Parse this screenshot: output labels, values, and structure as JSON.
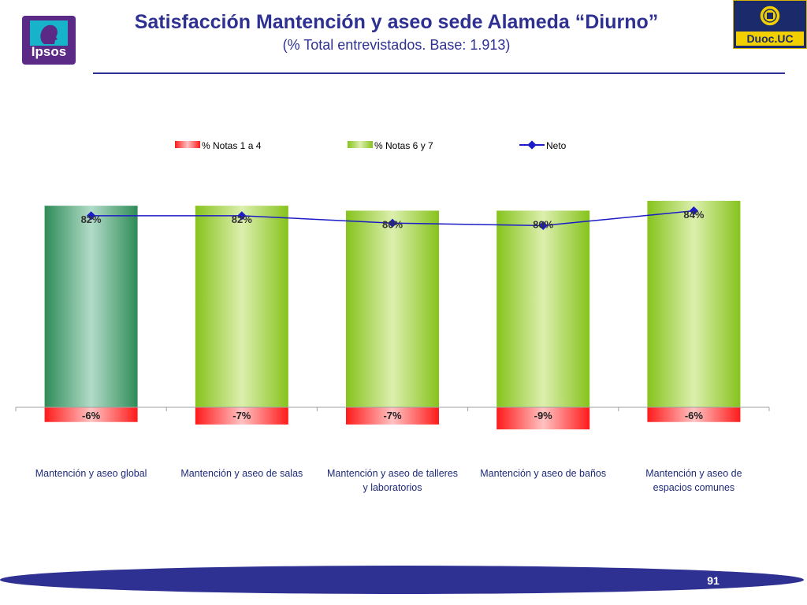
{
  "header": {
    "title": "Satisfacción Mantención y aseo sede Alameda “Diurno”",
    "subtitle": "(% Total entrevistados. Base: 1.913)"
  },
  "logos": {
    "left": {
      "text": "Ipsos",
      "icon": "ipsos-head-icon",
      "color": "#5b2a86"
    },
    "right": {
      "text": "Duoc.UC",
      "icon": "university-seal-icon",
      "color": "#1b2a6b",
      "accent": "#f2d000"
    }
  },
  "footer": {
    "page_number": "91",
    "band_color": "#2e3192"
  },
  "chart_data": {
    "type": "bar",
    "categories": [
      [
        "Mantención y aseo global"
      ],
      [
        "Mantención y aseo de salas"
      ],
      [
        "Mantención y aseo de talleres",
        "y laboratorios"
      ],
      [
        "Mantención y aseo de baños"
      ],
      [
        "Mantención y aseo de",
        "espacios comunes"
      ]
    ],
    "series": [
      {
        "name": "% Notas 1 a 4",
        "kind": "bar",
        "values": [
          -6,
          -7,
          -7,
          -9,
          -6
        ],
        "labels": [
          "-6%",
          "-7%",
          "-7%",
          "-9%",
          "-6%"
        ],
        "color": "#ff2020"
      },
      {
        "name": "% Notas 6 y 7",
        "kind": "bar",
        "values": [
          82,
          82,
          80,
          80,
          84
        ],
        "labels": [
          "82%",
          "82%",
          "80%",
          "80%",
          "84%"
        ],
        "color": "#8cc620",
        "highlight_color": "#2e8b57"
      },
      {
        "name": "Neto",
        "kind": "line",
        "values": [
          76,
          76,
          73,
          72,
          78
        ],
        "color": "#1c1cc8"
      }
    ],
    "legend_position": "top",
    "grid": false
  }
}
